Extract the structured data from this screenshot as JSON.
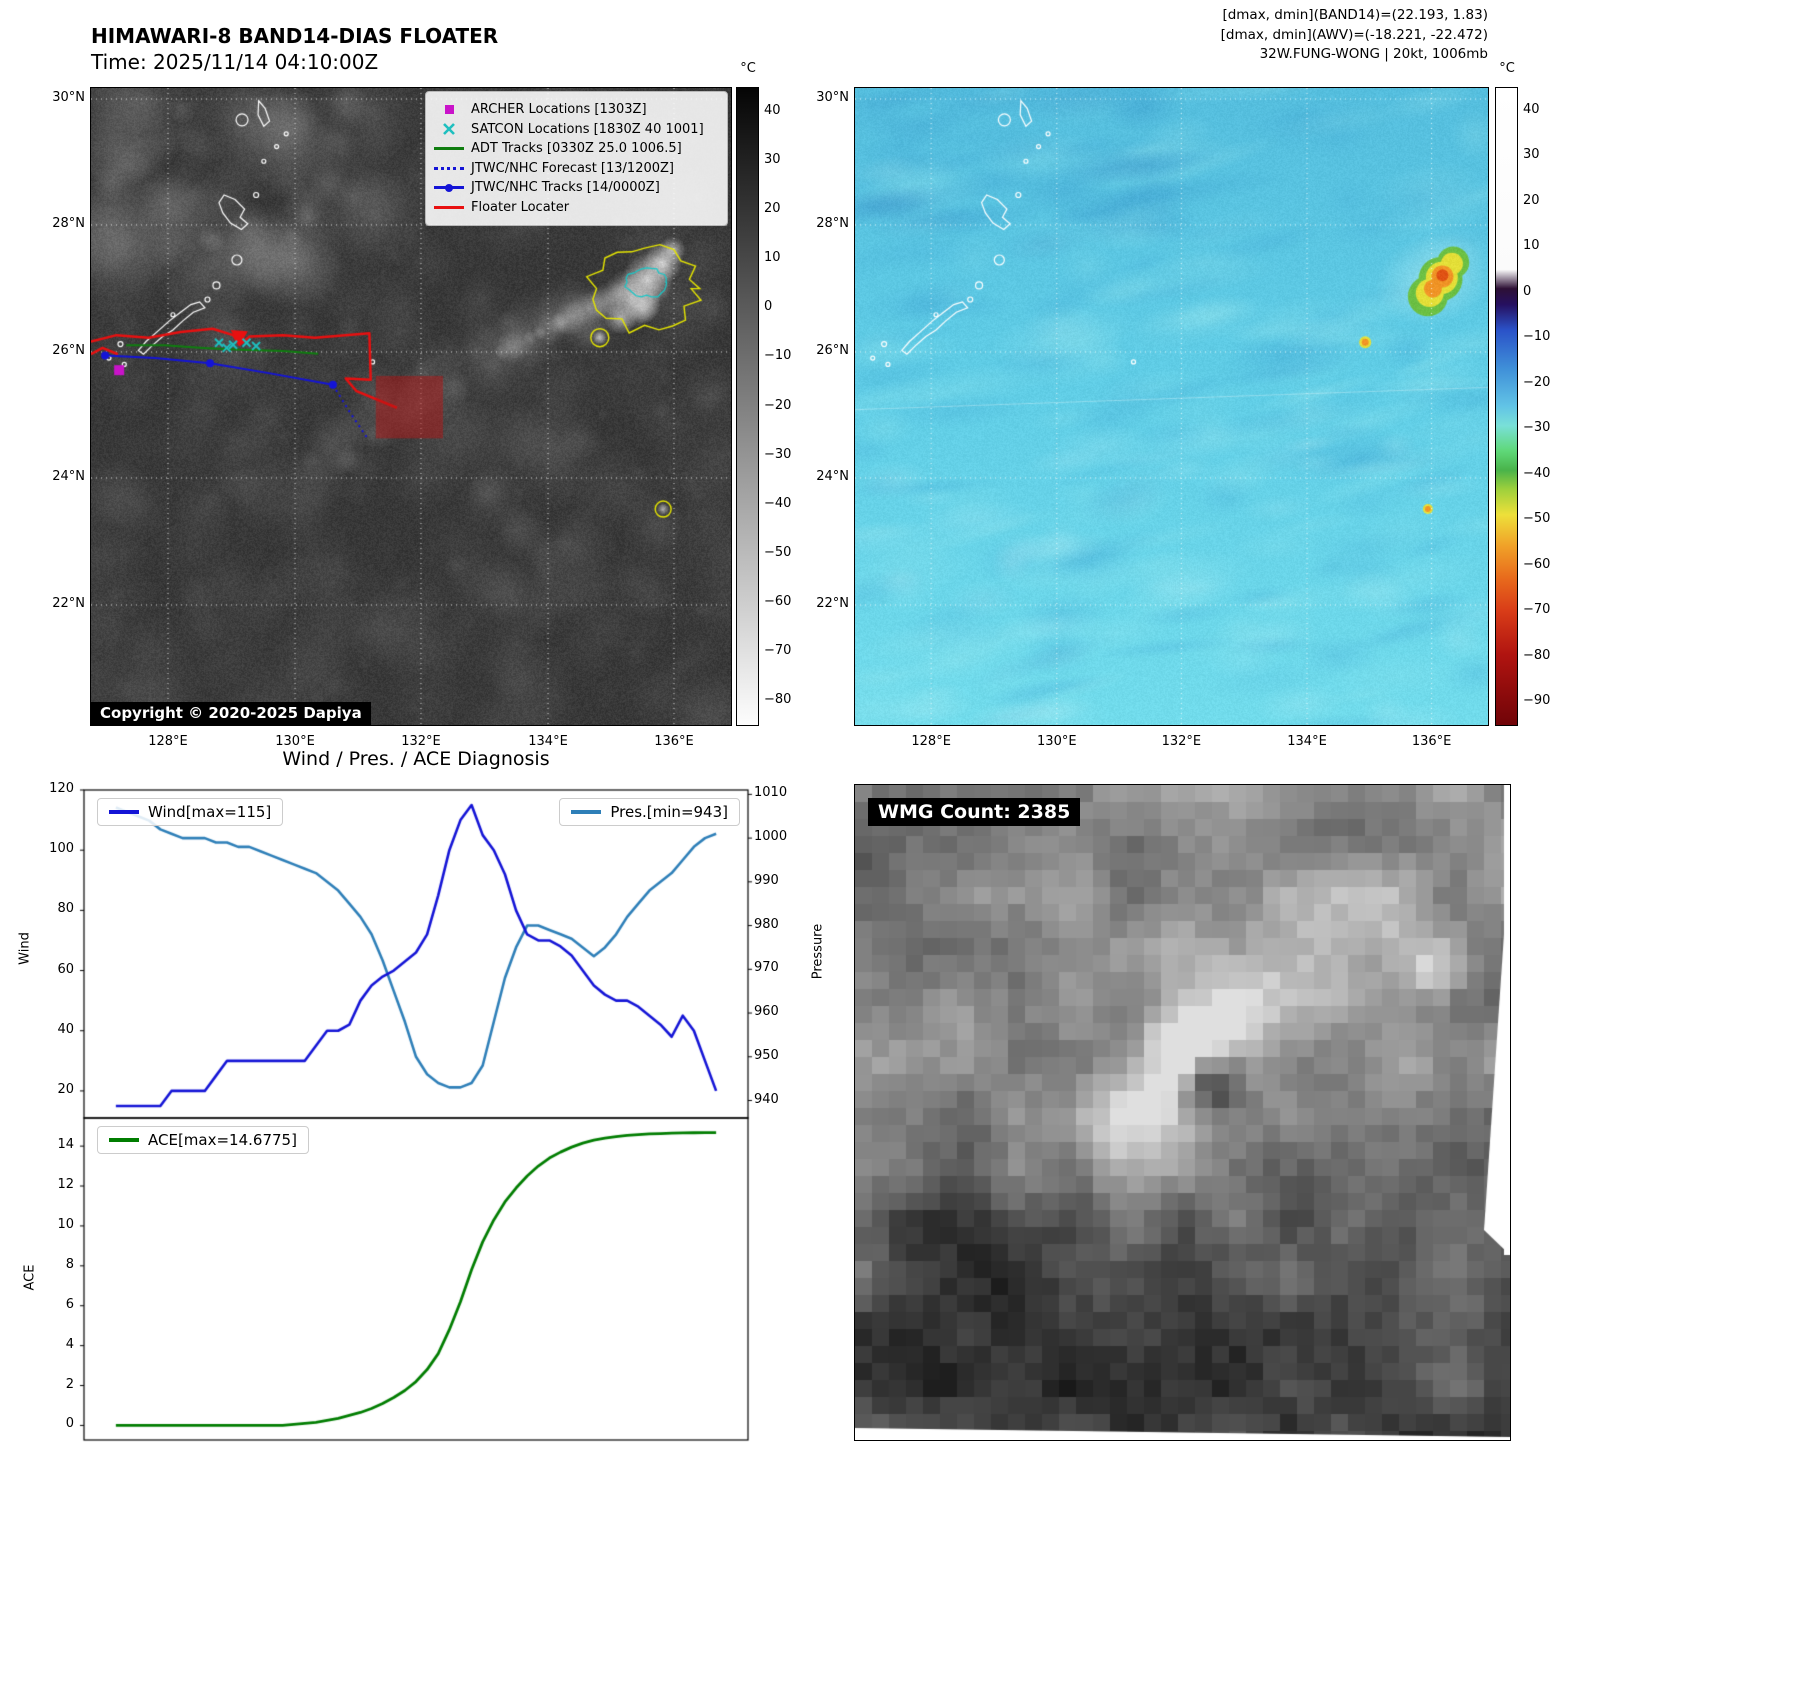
{
  "band14_panel": {
    "title": "HIMAWARI-8 BAND14-DIAS FLOATER",
    "time_line": "Time: 2025/11/14 04:10:00Z",
    "copyright": "Copyright © 2020-2025 Dapiya",
    "legend_items": [
      {
        "label": "ARCHER Locations [1303Z]",
        "marker": "magenta-square"
      },
      {
        "label": "SATCON Locations [1830Z 40 1001]",
        "marker": "cyan-x"
      },
      {
        "label": "ADT Tracks [0330Z 25.0 1006.5]",
        "marker": "green-line"
      },
      {
        "label": "JTWC/NHC Forecast [13/1200Z]",
        "marker": "blue-dotted-line"
      },
      {
        "label": "JTWC/NHC Tracks [14/0000Z]",
        "marker": "blue-line-with-dot"
      },
      {
        "label": "Floater Locater",
        "marker": "red-line"
      }
    ],
    "lat_ticks": [
      "30°N",
      "28°N",
      "26°N",
      "24°N",
      "22°N"
    ],
    "lon_ticks": [
      "128°E",
      "130°E",
      "132°E",
      "134°E",
      "136°E"
    ],
    "colorbar": {
      "unit": "°C",
      "ticks": [
        "40",
        "30",
        "20",
        "10",
        "0",
        "−10",
        "−20",
        "−30",
        "−40",
        "−50",
        "−60",
        "−70",
        "−80"
      ]
    }
  },
  "awv_panel": {
    "header_lines": [
      "[dmax, dmin](BAND14)=(22.193, 1.83)",
      "[dmax, dmin](AWV)=(-18.221, -22.472)",
      "32W.FUNG-WONG | 20kt, 1006mb"
    ],
    "lat_ticks": [
      "30°N",
      "28°N",
      "26°N",
      "24°N",
      "22°N"
    ],
    "lon_ticks": [
      "128°E",
      "130°E",
      "132°E",
      "134°E",
      "136°E"
    ],
    "colorbar": {
      "unit": "°C",
      "ticks": [
        "40",
        "30",
        "20",
        "10",
        "0",
        "−10",
        "−20",
        "−30",
        "−40",
        "−50",
        "−60",
        "−70",
        "−80",
        "−90"
      ]
    }
  },
  "diagnosis": {
    "title": "Wind / Pres. / ACE Diagnosis",
    "ylabel_wind": "Wind",
    "ylabel_pressure": "Pressure",
    "ylabel_ace": "ACE"
  },
  "chart_data": [
    {
      "type": "line",
      "title": "Wind / Pres. / ACE Diagnosis",
      "series": [
        {
          "name": "Wind[max=115]",
          "axis": "left",
          "color": "#1414d6",
          "values": [
            15,
            15,
            15,
            15,
            15,
            20,
            20,
            20,
            20,
            25,
            30,
            30,
            30,
            30,
            30,
            30,
            30,
            30,
            35,
            40,
            40,
            42,
            50,
            55,
            58,
            60,
            63,
            66,
            72,
            85,
            100,
            110,
            115,
            105,
            100,
            92,
            80,
            72,
            70,
            70,
            68,
            65,
            60,
            55,
            52,
            50,
            50,
            48,
            45,
            42,
            38,
            45,
            40,
            30,
            20
          ]
        },
        {
          "name": "Pres.[min=943]",
          "axis": "right",
          "color": "#2e7fb8",
          "values": [
            1007,
            1006,
            1005,
            1004,
            1002,
            1001,
            1000,
            1000,
            1000,
            999,
            999,
            998,
            998,
            997,
            996,
            995,
            994,
            993,
            992,
            990,
            988,
            985,
            982,
            978,
            972,
            965,
            958,
            950,
            946,
            944,
            943,
            943,
            944,
            948,
            958,
            968,
            975,
            980,
            980,
            979,
            978,
            977,
            975,
            973,
            975,
            978,
            982,
            985,
            988,
            990,
            992,
            995,
            998,
            1000,
            1001
          ]
        }
      ],
      "ylabel_left": "Wind",
      "ylabel_right": "Pressure",
      "ylim_left": [
        11,
        120
      ],
      "yticks_left": [
        20,
        40,
        60,
        80,
        100,
        120
      ],
      "ylim_right": [
        936,
        1011
      ],
      "yticks_right": [
        940,
        950,
        960,
        970,
        980,
        990,
        1000,
        1010
      ],
      "legend_position": "upper-left-and-upper-right",
      "grid": false
    },
    {
      "type": "line",
      "series": [
        {
          "name": "ACE[max=14.6775]",
          "color": "#007d00",
          "values": [
            0,
            0,
            0,
            0,
            0,
            0,
            0,
            0,
            0,
            0,
            0,
            0,
            0,
            0,
            0,
            0,
            0.05,
            0.1,
            0.15,
            0.25,
            0.35,
            0.5,
            0.65,
            0.85,
            1.1,
            1.4,
            1.75,
            2.2,
            2.8,
            3.6,
            4.8,
            6.2,
            7.8,
            9.2,
            10.3,
            11.2,
            11.9,
            12.5,
            13.0,
            13.4,
            13.7,
            13.95,
            14.15,
            14.3,
            14.4,
            14.48,
            14.54,
            14.58,
            14.61,
            14.63,
            14.65,
            14.66,
            14.67,
            14.675,
            14.6775
          ]
        }
      ],
      "ylabel": "ACE",
      "ylim": [
        -0.73,
        15.41
      ],
      "yticks": [
        0,
        2,
        4,
        6,
        8,
        10,
        12,
        14
      ],
      "legend_position": "upper-left",
      "grid": false
    }
  ],
  "wmg_panel": {
    "label": "WMG Count: 2385"
  }
}
